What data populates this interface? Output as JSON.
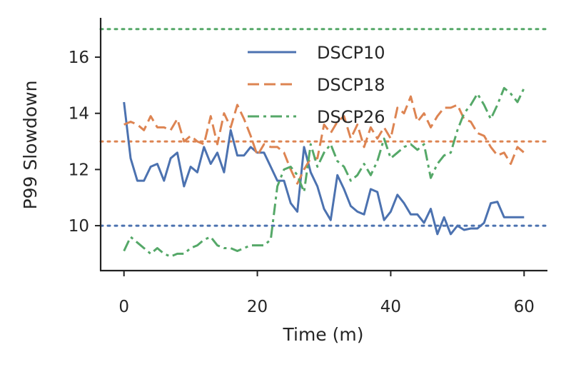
{
  "chart_data": {
    "type": "line",
    "title": "",
    "xlabel": "Time (m)",
    "ylabel": "P99 Slowdown",
    "xlim": [
      -3.5,
      63.5
    ],
    "ylim": [
      8.4,
      17.4
    ],
    "xticks": [
      0,
      20,
      40,
      60
    ],
    "yticks": [
      10,
      12,
      14,
      16
    ],
    "grid": false,
    "legend_position": "top-center",
    "series": [
      {
        "name": "DSCP10",
        "style": "solid",
        "color": "#4c72b0",
        "x": [
          0,
          1,
          2,
          3,
          4,
          5,
          6,
          7,
          8,
          9,
          10,
          11,
          12,
          13,
          14,
          15,
          16,
          17,
          18,
          19,
          20,
          21,
          22,
          23,
          24,
          25,
          26,
          27,
          28,
          29,
          30,
          31,
          32,
          33,
          34,
          35,
          36,
          37,
          38,
          39,
          40,
          41,
          42,
          43,
          44,
          45,
          46,
          47,
          48,
          49,
          50,
          51,
          52,
          53,
          54,
          55,
          56,
          57,
          58,
          59,
          60
        ],
        "values": [
          14.4,
          12.4,
          11.6,
          11.6,
          12.1,
          12.2,
          11.6,
          12.4,
          12.6,
          11.4,
          12.1,
          11.9,
          12.8,
          12.2,
          12.6,
          11.9,
          13.4,
          12.5,
          12.5,
          12.8,
          12.6,
          12.6,
          12.1,
          11.6,
          11.6,
          10.8,
          10.5,
          12.8,
          11.9,
          11.4,
          10.6,
          10.2,
          11.8,
          11.3,
          10.7,
          10.5,
          10.4,
          11.3,
          11.2,
          10.2,
          10.5,
          11.1,
          10.8,
          10.4,
          10.4,
          10.1,
          10.6,
          9.7,
          10.3,
          9.7,
          10.0,
          9.85,
          9.9,
          9.9,
          10.1,
          10.8,
          10.85,
          10.3,
          10.3,
          10.3,
          10.3
        ]
      },
      {
        "name": "DSCP18",
        "style": "dashed",
        "color": "#dd8452",
        "x": [
          0,
          1,
          2,
          3,
          4,
          5,
          6,
          7,
          8,
          9,
          10,
          11,
          12,
          13,
          14,
          15,
          16,
          17,
          18,
          19,
          20,
          21,
          22,
          23,
          24,
          25,
          26,
          27,
          28,
          29,
          30,
          31,
          32,
          33,
          34,
          35,
          36,
          37,
          38,
          39,
          40,
          41,
          42,
          43,
          44,
          45,
          46,
          47,
          48,
          49,
          50,
          51,
          52,
          53,
          54,
          55,
          56,
          57,
          58,
          59,
          60
        ],
        "values": [
          13.6,
          13.7,
          13.6,
          13.4,
          13.9,
          13.5,
          13.5,
          13.4,
          13.8,
          13.0,
          13.2,
          13.0,
          12.9,
          13.9,
          12.9,
          14.0,
          13.5,
          14.3,
          13.8,
          13.2,
          12.5,
          12.9,
          12.8,
          12.8,
          12.6,
          12.0,
          11.5,
          12.0,
          12.4,
          12.4,
          13.6,
          13.3,
          13.7,
          13.9,
          13.1,
          13.6,
          12.8,
          13.5,
          13.1,
          13.5,
          13.1,
          14.2,
          14.0,
          14.6,
          13.7,
          14.0,
          13.5,
          13.9,
          14.2,
          14.2,
          14.3,
          13.8,
          13.7,
          13.3,
          13.2,
          12.8,
          12.5,
          12.6,
          12.2,
          12.8,
          12.6
        ]
      },
      {
        "name": "DSCP26",
        "style": "dashdot",
        "color": "#55a868",
        "x": [
          0,
          1,
          2,
          3,
          4,
          5,
          6,
          7,
          8,
          9,
          10,
          11,
          12,
          13,
          14,
          15,
          16,
          17,
          18,
          19,
          20,
          21,
          22,
          23,
          24,
          25,
          26,
          27,
          28,
          29,
          30,
          31,
          32,
          33,
          34,
          35,
          36,
          37,
          38,
          39,
          40,
          41,
          42,
          43,
          44,
          45,
          46,
          47,
          48,
          49,
          50,
          51,
          52,
          53,
          54,
          55,
          56,
          57,
          58,
          59,
          60
        ],
        "values": [
          9.1,
          9.6,
          9.4,
          9.2,
          9.0,
          9.2,
          9.0,
          8.9,
          9.0,
          9.0,
          9.2,
          9.3,
          9.5,
          9.6,
          9.3,
          9.2,
          9.2,
          9.1,
          9.2,
          9.3,
          9.3,
          9.3,
          9.5,
          11.4,
          12.0,
          12.1,
          11.8,
          11.2,
          12.9,
          12.1,
          12.6,
          12.9,
          12.3,
          12.1,
          11.6,
          11.8,
          12.2,
          11.8,
          12.3,
          13.1,
          12.4,
          12.6,
          12.8,
          12.9,
          12.7,
          12.9,
          11.7,
          12.2,
          12.5,
          12.6,
          13.4,
          14.0,
          14.3,
          14.7,
          14.3,
          13.8,
          14.3,
          14.9,
          14.7,
          14.4,
          14.9
        ]
      }
    ],
    "reference_lines": [
      {
        "y": 17.0,
        "color": "#55a868",
        "style": "dotted"
      },
      {
        "y": 13.0,
        "color": "#dd8452",
        "style": "dotted"
      },
      {
        "y": 10.0,
        "color": "#4c72b0",
        "style": "dotted"
      }
    ]
  }
}
